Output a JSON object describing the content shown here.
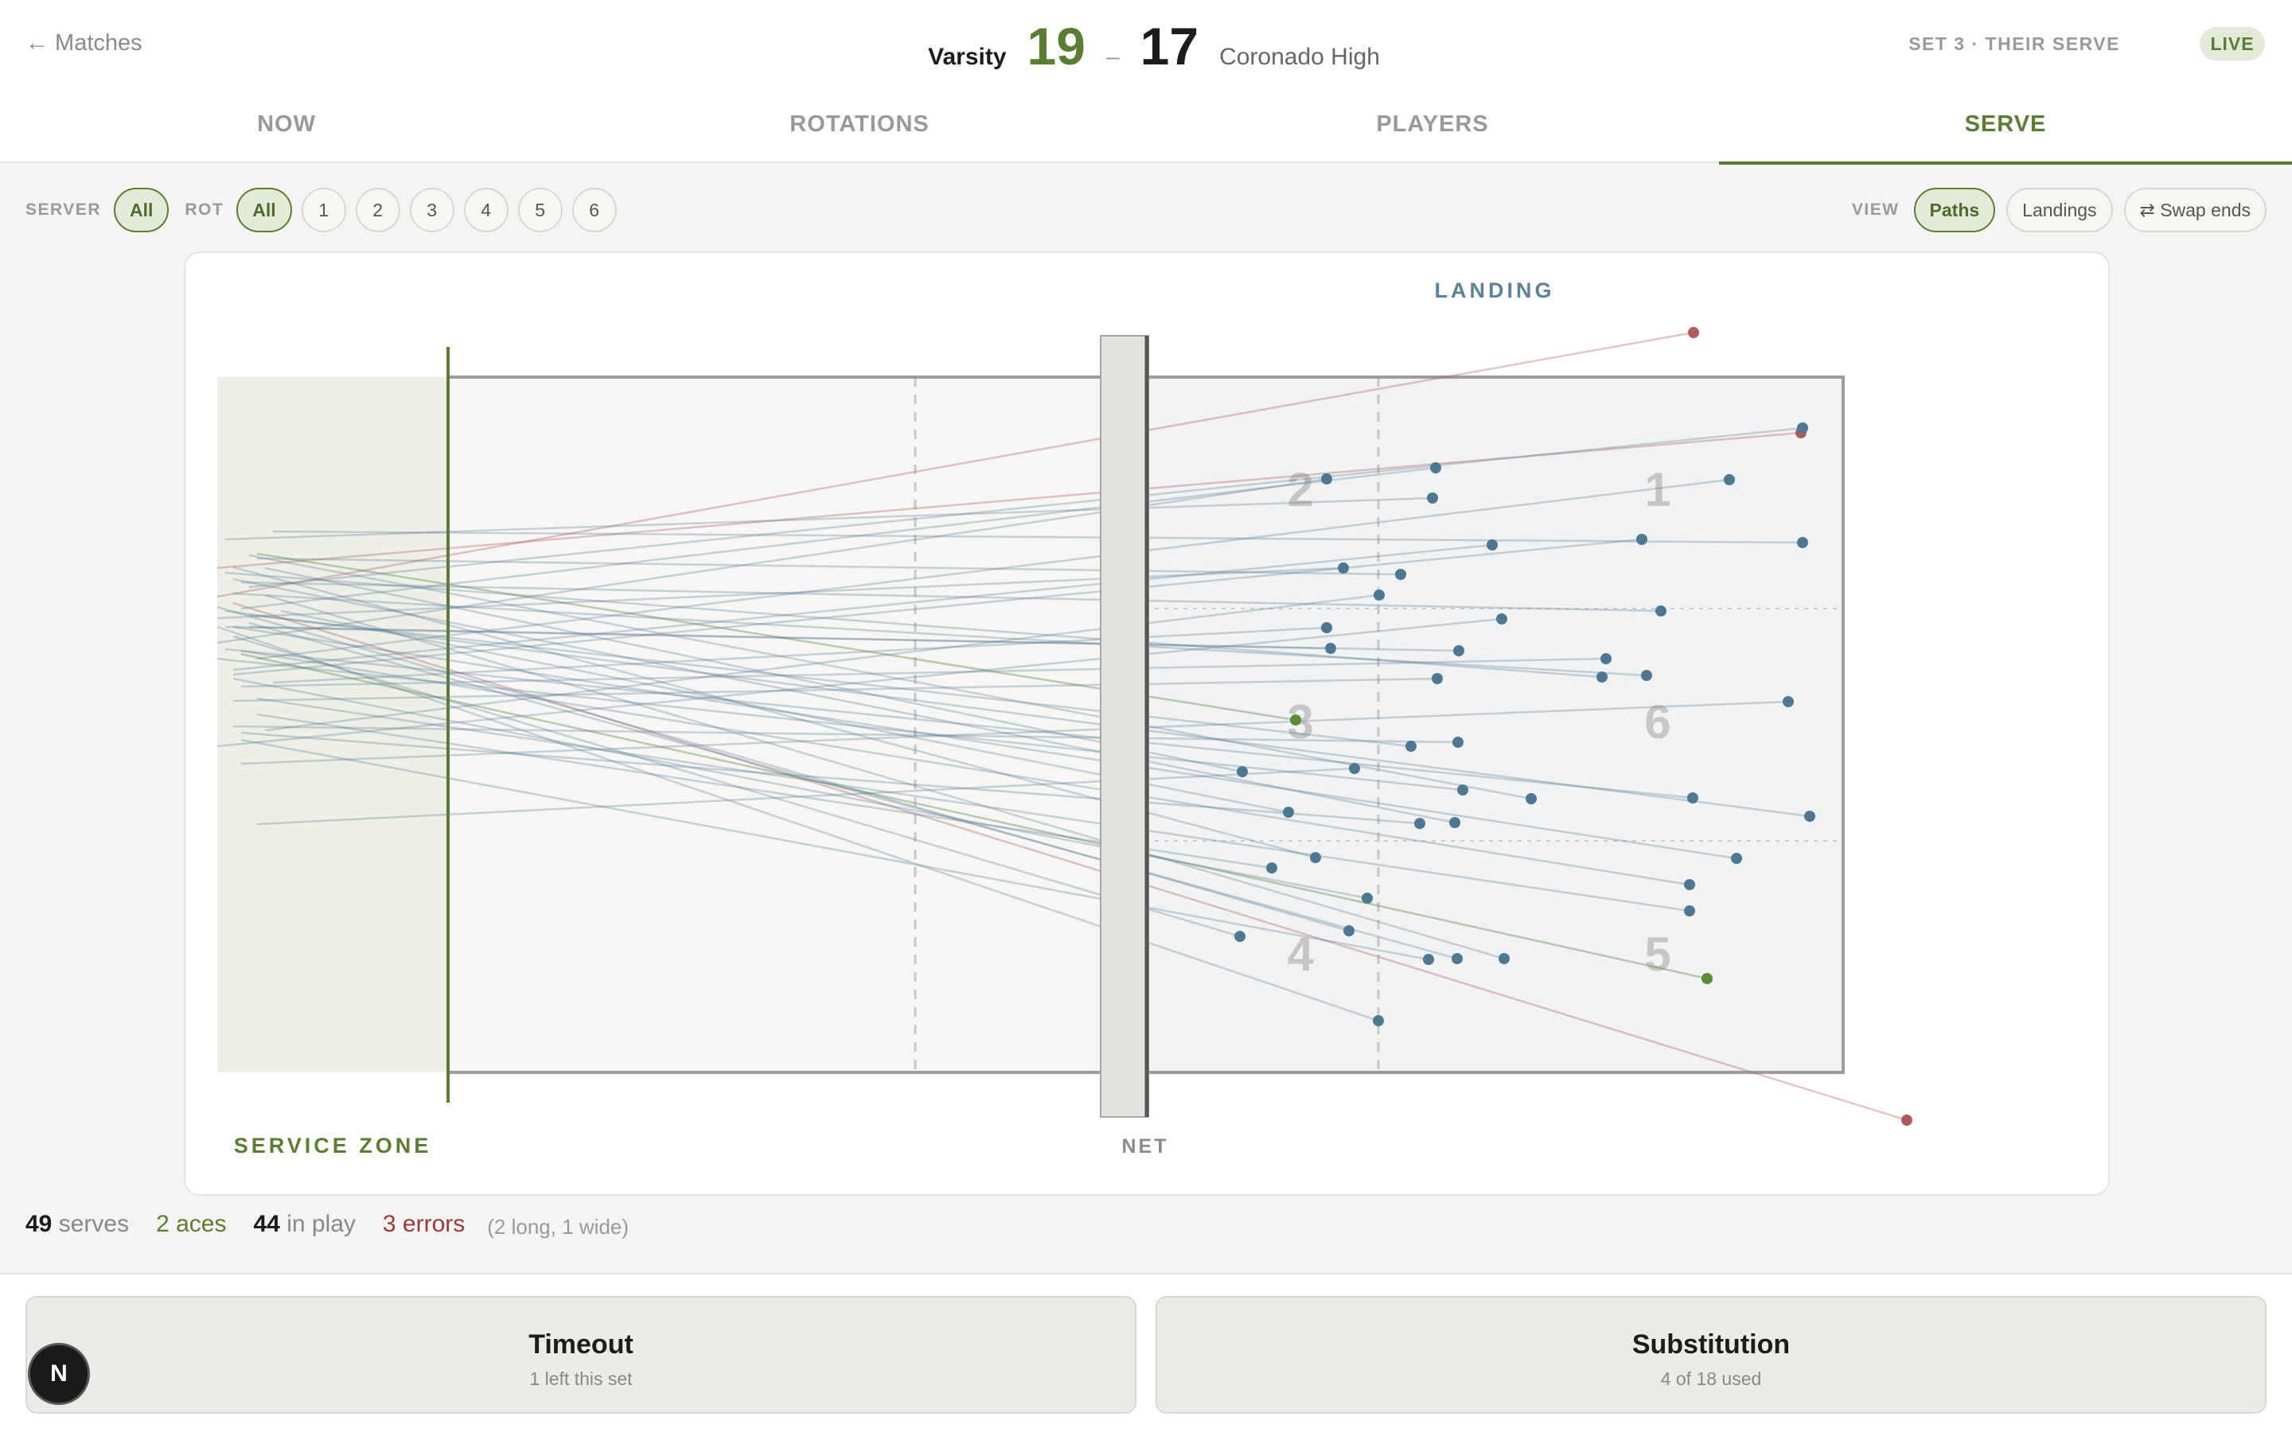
{
  "header": {
    "back_label": "← Matches",
    "home_team": "Varsity",
    "home_score": "19",
    "separator": "–",
    "away_score": "17",
    "away_team": "Coronado High",
    "set_info": "SET 3 · THEIR SERVE",
    "live_label": "LIVE"
  },
  "tabs": [
    "NOW",
    "ROTATIONS",
    "PLAYERS",
    "SERVE"
  ],
  "active_tab": "SERVE",
  "filters": {
    "server_label": "SERVER",
    "server_value": "All",
    "rot_label": "ROT",
    "rot_options": [
      "All",
      "1",
      "2",
      "3",
      "4",
      "5",
      "6"
    ],
    "rot_selected": "All"
  },
  "view": {
    "label": "VIEW",
    "options": [
      "Paths",
      "Landings"
    ],
    "selected": "Paths",
    "swap_label": "⇄ Swap ends"
  },
  "court": {
    "landing_label": "LANDING",
    "service_zone_label": "SERVICE ZONE",
    "net_label": "NET",
    "zones": [
      "1",
      "2",
      "3",
      "4",
      "5",
      "6"
    ]
  },
  "summary": {
    "serves_count": "49",
    "serves_label": "serves",
    "aces_text": "2 aces",
    "in_play_count": "44",
    "in_play_label": "in play",
    "errors_text": "3 errors",
    "errors_detail": "(2 long, 1 wide)"
  },
  "actions": {
    "timeout_title": "Timeout",
    "timeout_sub": "1 left this set",
    "sub_title": "Substitution",
    "sub_sub": "4 of 18 used"
  },
  "avatar_initial": "N",
  "colors": {
    "accent": "#5a7d34",
    "in_play": "#4e7891",
    "ace": "#5a8a3a",
    "error": "#b25a5a"
  }
}
